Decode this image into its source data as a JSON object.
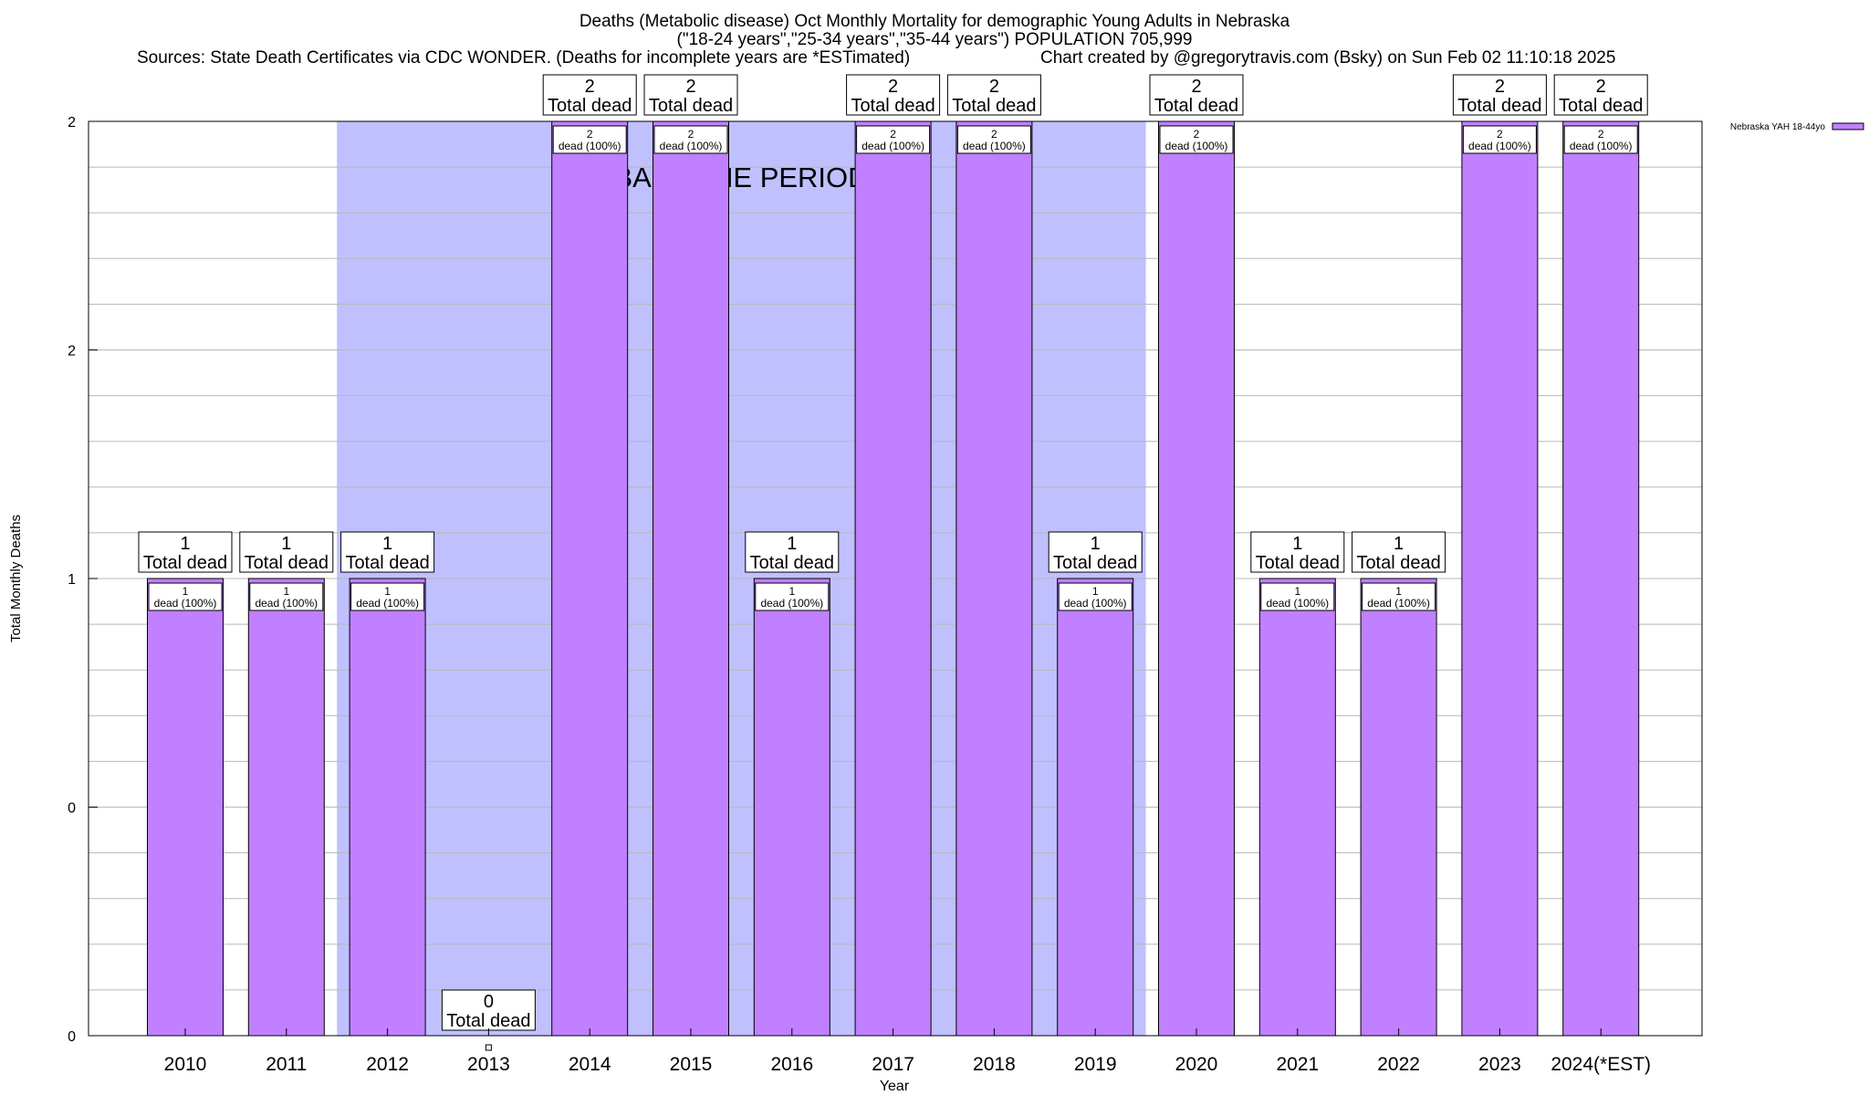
{
  "title": {
    "line1": "Deaths (Metabolic disease) Oct Monthly Mortality for demographic Young Adults in Nebraska",
    "line2": "(\"18-24 years\",\"25-34 years\",\"35-44 years\") POPULATION 705,999",
    "sources": "Sources: State Death Certificates via CDC WONDER. (Deaths for incomplete years are *ESTimated)",
    "credit": "Chart created by @gregorytravis.com (Bsky) on Sun Feb 02 11:10:18 2025"
  },
  "chart_data": {
    "type": "bar",
    "title": "Deaths (Metabolic disease) Oct Monthly Mortality for demographic Young Adults in Nebraska",
    "xlabel": "Year",
    "ylabel": "Total Monthly Deaths",
    "ylim": [
      0,
      2
    ],
    "y_tick_labels": [
      "0",
      "0",
      "1",
      "2",
      "2"
    ],
    "categories": [
      "2010",
      "2011",
      "2012",
      "2013",
      "2014",
      "2015",
      "2016",
      "2017",
      "2018",
      "2019",
      "2020",
      "2021",
      "2022",
      "2023",
      "2024(*EST)"
    ],
    "series": [
      {
        "name": "Nebraska YAH 18-44yo",
        "values": [
          1,
          1,
          1,
          0,
          2,
          2,
          1,
          2,
          2,
          1,
          2,
          1,
          1,
          2,
          2
        ]
      }
    ],
    "total_labels": [
      "1\nTotal dead",
      "1\nTotal dead",
      "1\nTotal dead",
      "0\nTotal dead",
      "2\nTotal dead",
      "2\nTotal dead",
      "1\nTotal dead",
      "2\nTotal dead",
      "2\nTotal dead",
      "1\nTotal dead",
      "2\nTotal dead",
      "1\nTotal dead",
      "1\nTotal dead",
      "2\nTotal dead",
      "2\nTotal dead"
    ],
    "inner_labels": [
      "1\ndead (100%)",
      "1\ndead (100%)",
      "1\ndead (100%)",
      "",
      "2\ndead (100%)",
      "2\ndead (100%)",
      "1\ndead (100%)",
      "2\ndead (100%)",
      "2\ndead (100%)",
      "1\ndead (100%)",
      "2\ndead (100%)",
      "1\ndead (100%)",
      "1\ndead (100%)",
      "2\ndead (100%)",
      "2\ndead (100%)"
    ],
    "baseline_period": {
      "label": "BASELINE PERIOD",
      "from": "2012",
      "to": "2019",
      "color": "#c0c0ff"
    },
    "bar_color": "#c080ff",
    "legend": {
      "position": "top-right",
      "entries": [
        "Nebraska YAH 18-44yo"
      ]
    },
    "grid": true
  }
}
